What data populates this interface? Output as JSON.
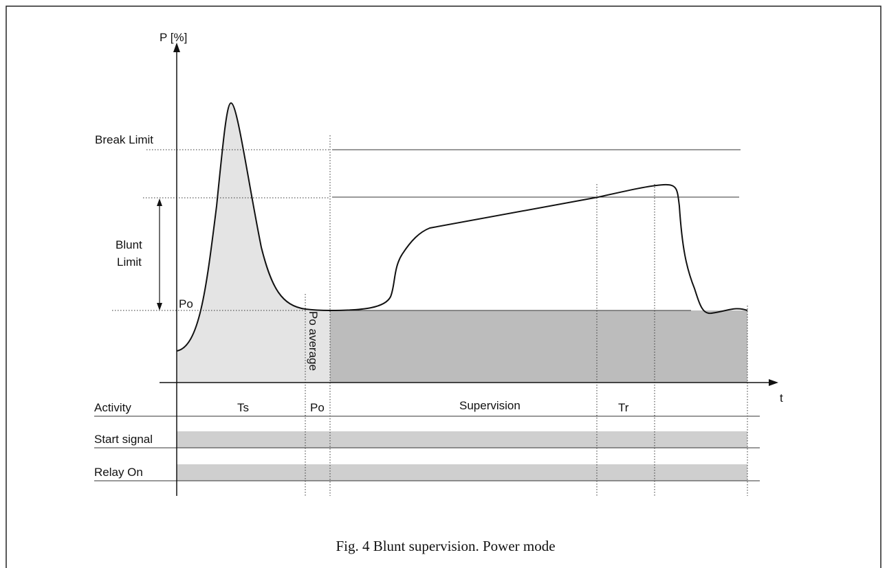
{
  "axes": {
    "y_label": "P [%]",
    "x_label": "t"
  },
  "levels": {
    "break_limit": "Break  Limit",
    "blunt_limit": [
      "Blunt",
      "Limit"
    ],
    "po": "Po"
  },
  "po_average": "Po average",
  "rows": [
    {
      "label": "Activity",
      "phases": [
        "Ts",
        "Po",
        "Supervision",
        "Tr"
      ]
    },
    {
      "label": "Start signal"
    },
    {
      "label": "Relay On"
    }
  ],
  "caption": "Fig. 4 Blunt supervision. Power mode"
}
